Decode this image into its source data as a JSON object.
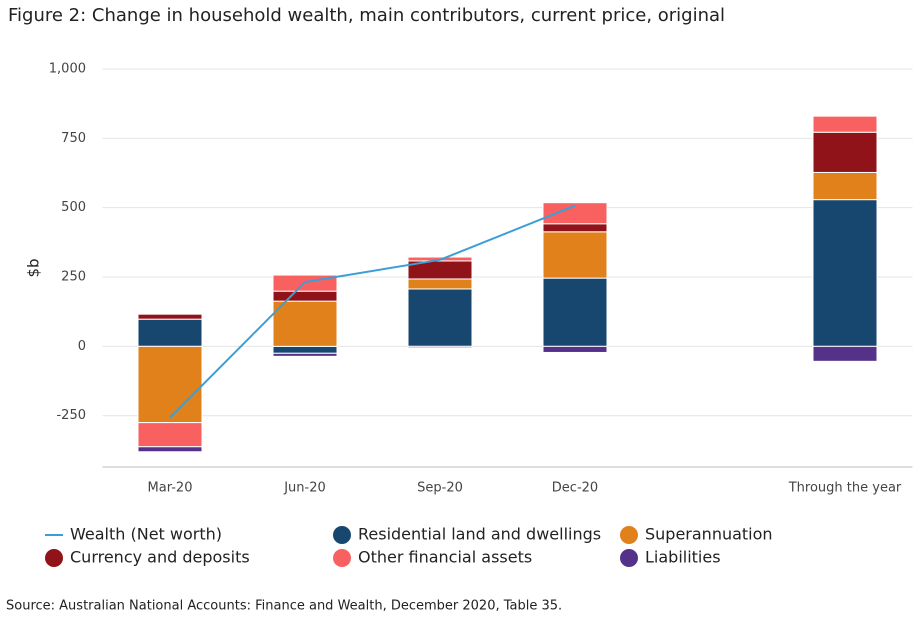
{
  "chart_data": {
    "type": "stacked_bar",
    "title": "Figure 2: Change in household wealth, main contributors, current price, original",
    "y_label": "$b",
    "source": "Source: Australian National Accounts: Finance and Wealth, December 2020, Table 35.",
    "categories": [
      "Mar-20",
      "Jun-20",
      "Sep-20",
      "Dec-20",
      null,
      "Through the year"
    ],
    "series": [
      {
        "name": "Wealth (Net worth)",
        "type": "line",
        "color": "#3a9fd6",
        "values": [
          -257,
          232,
          312,
          507,
          null,
          null
        ]
      },
      {
        "name": "Residential land and dwellings",
        "type": "bar",
        "color": "#17476e",
        "values": [
          98,
          -25,
          207,
          246,
          null,
          529
        ]
      },
      {
        "name": "Superannuation",
        "type": "bar",
        "color": "#e0811b",
        "values": [
          -275,
          163,
          36,
          167,
          null,
          98
        ]
      },
      {
        "name": "Currency and deposits",
        "type": "bar",
        "color": "#8f1318",
        "values": [
          18,
          36,
          65,
          29,
          null,
          145
        ]
      },
      {
        "name": "Other financial assets",
        "type": "bar",
        "color": "#f96060",
        "values": [
          -87,
          58,
          14,
          76,
          null,
          58
        ]
      },
      {
        "name": "Liabilities",
        "type": "bar",
        "color": "#55328a",
        "values": [
          -18,
          -11,
          -5,
          -22,
          null,
          -54
        ]
      }
    ],
    "ylim": [
      -435,
      1000
    ],
    "yticks": [
      -250,
      0,
      250,
      500,
      750,
      {
        "value": 1000,
        "label": "1,000"
      }
    ],
    "grid": true
  }
}
